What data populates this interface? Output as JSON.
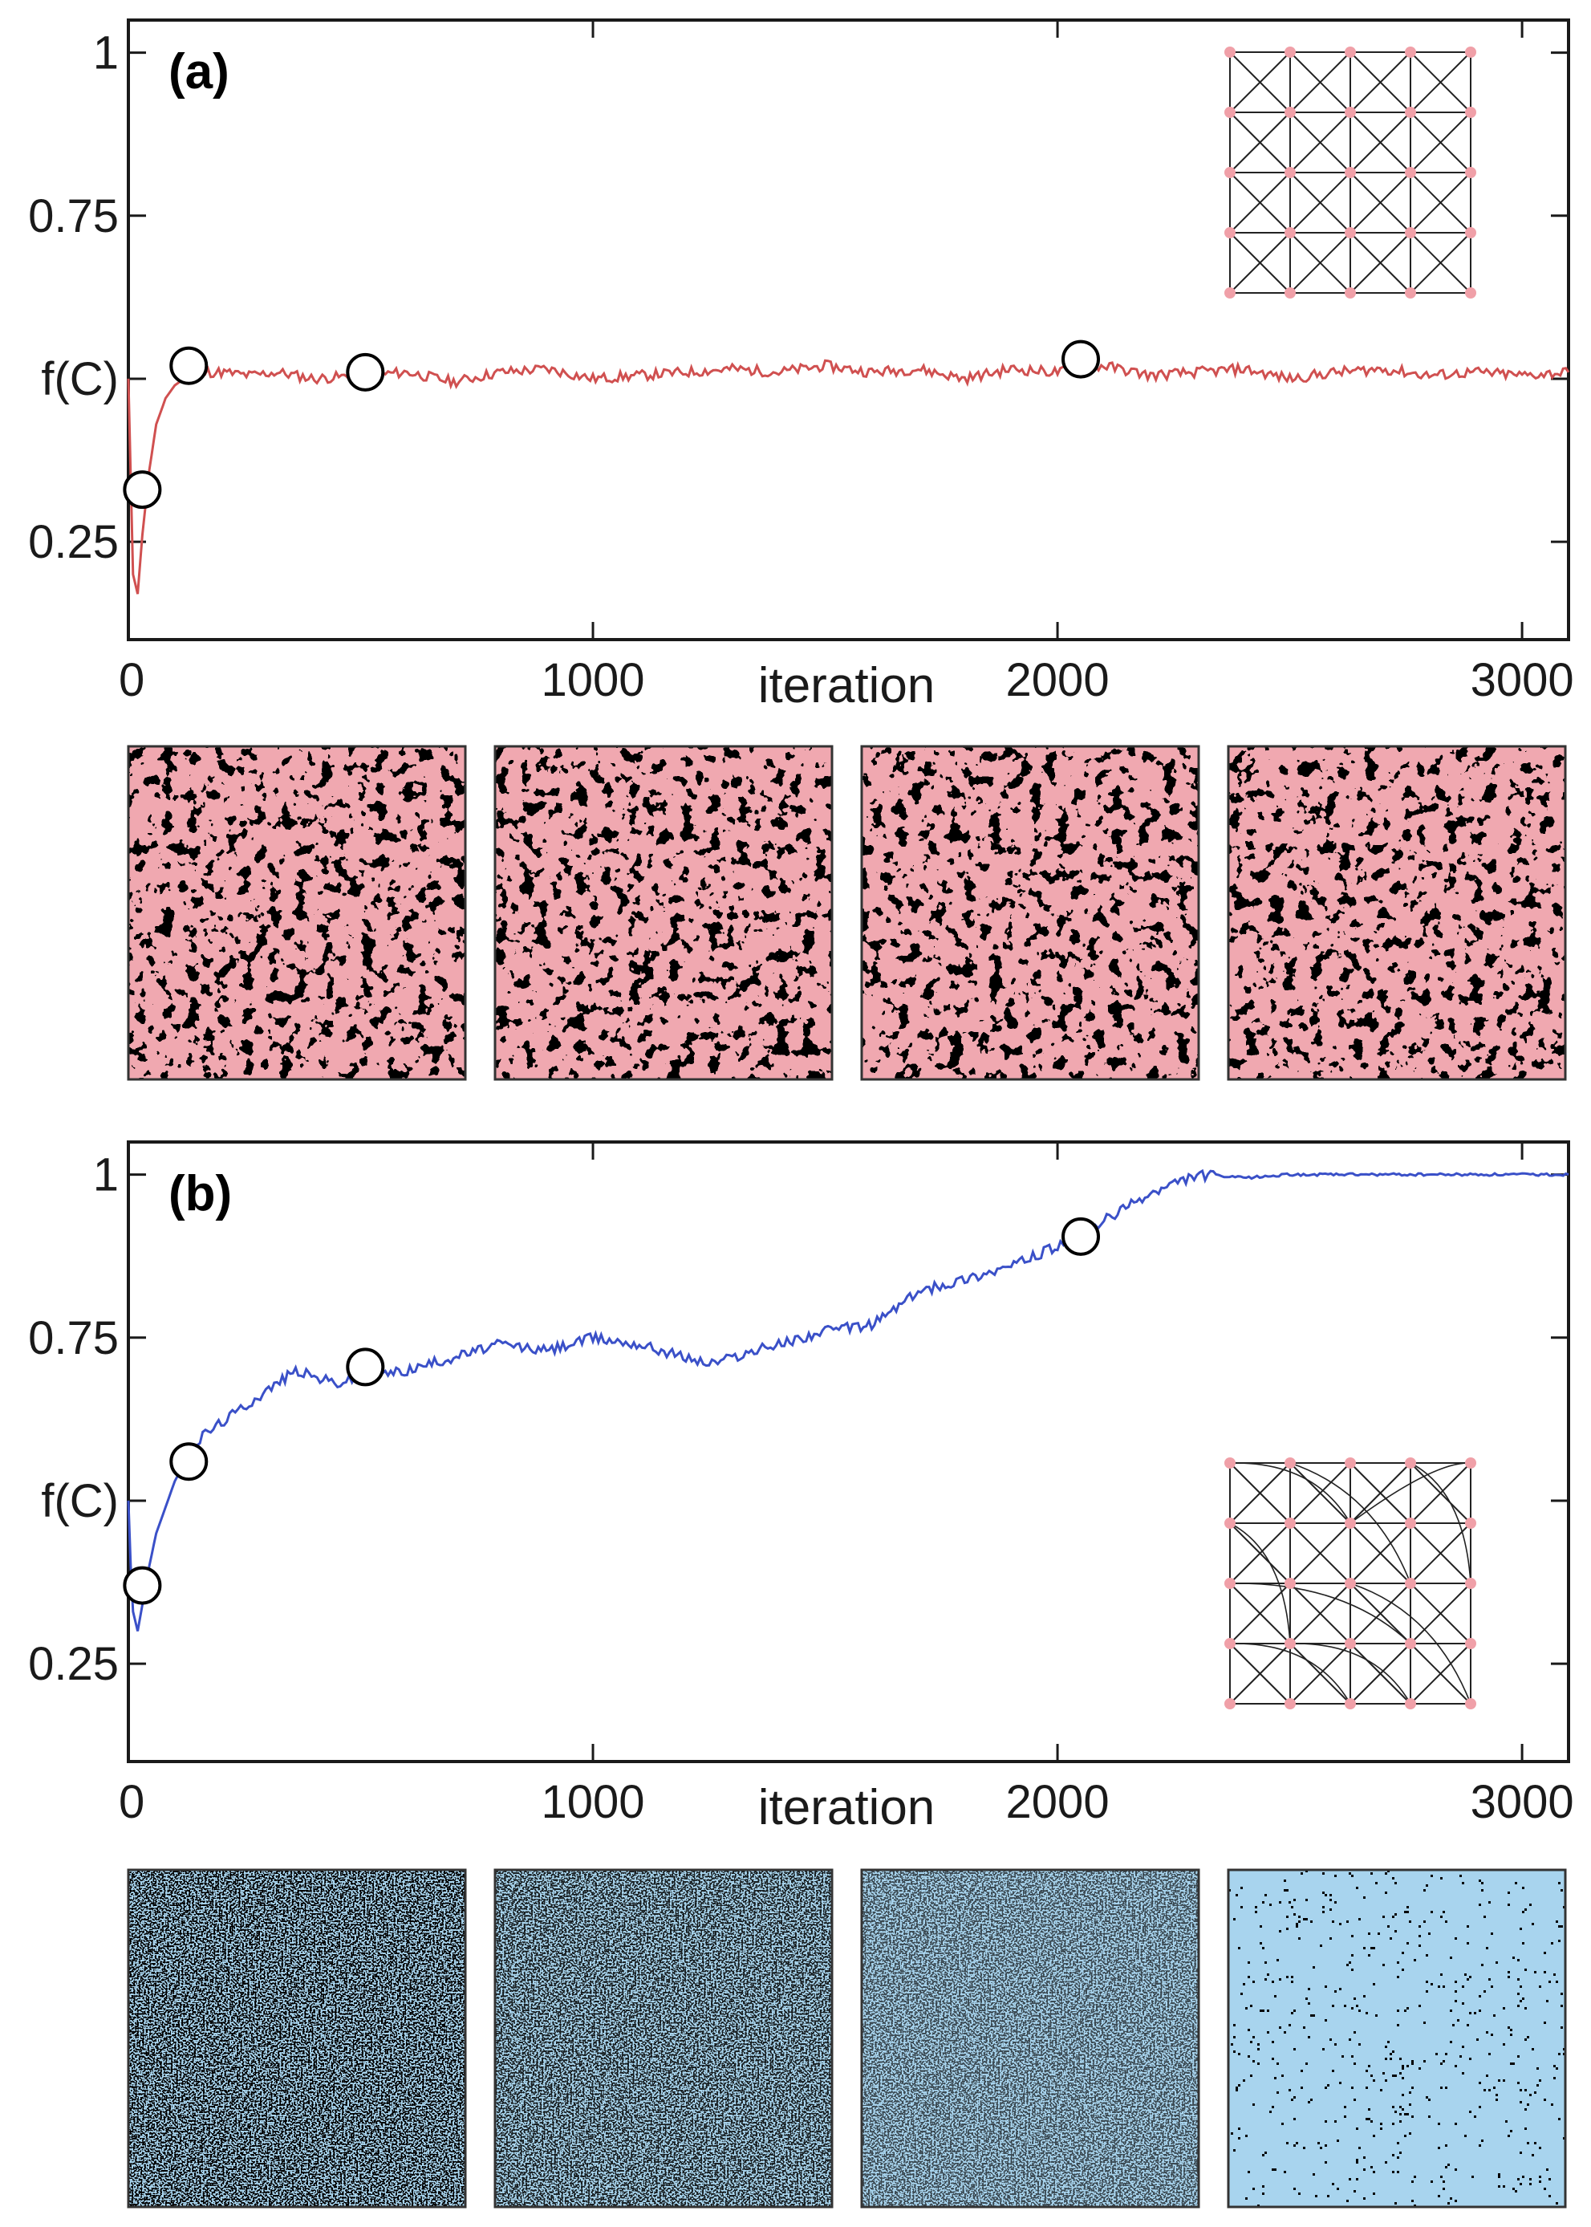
{
  "colors": {
    "panel_a_line": "#d05050",
    "panel_a_pattern": "#f0a8b0",
    "panel_b_line": "#3a50c8",
    "panel_b_pattern": "#a8d4ee",
    "lattice_node": "#f0a0a8",
    "background_pattern": "#000000"
  },
  "chart_data": [
    {
      "type": "line",
      "panel_label": "(a)",
      "xlabel": "iteration",
      "ylabel": "f(C)",
      "xlim": [
        0,
        3100
      ],
      "ylim": [
        0.1,
        1.05
      ],
      "x_ticks": [
        0,
        1000,
        2000,
        3000
      ],
      "x_tick_labels": [
        "0",
        "1000",
        "2000",
        "3000"
      ],
      "y_ticks": [
        0.25,
        0.5,
        0.75,
        1
      ],
      "y_tick_labels": [
        "0.25",
        "f(C)",
        "0.75",
        "1"
      ],
      "series": [
        {
          "name": "f(C)",
          "x": [
            0,
            5,
            10,
            20,
            30,
            45,
            60,
            80,
            100,
            130,
            160,
            200,
            260,
            320,
            400,
            500,
            600,
            700,
            800,
            900,
            1000,
            1100,
            1200,
            1300,
            1400,
            1500,
            1600,
            1700,
            1800,
            1900,
            2000,
            2100,
            2200,
            2300,
            2400,
            2500,
            2600,
            2700,
            2800,
            2900,
            3000,
            3100
          ],
          "values": [
            0.5,
            0.35,
            0.2,
            0.17,
            0.26,
            0.36,
            0.43,
            0.47,
            0.49,
            0.505,
            0.51,
            0.51,
            0.505,
            0.51,
            0.5,
            0.505,
            0.51,
            0.495,
            0.51,
            0.515,
            0.5,
            0.505,
            0.51,
            0.515,
            0.51,
            0.52,
            0.51,
            0.515,
            0.5,
            0.515,
            0.51,
            0.52,
            0.505,
            0.51,
            0.515,
            0.5,
            0.51,
            0.515,
            0.505,
            0.51,
            0.505,
            0.51
          ]
        }
      ],
      "markers": [
        {
          "x": 30,
          "y": 0.33
        },
        {
          "x": 130,
          "y": 0.52
        },
        {
          "x": 510,
          "y": 0.51
        },
        {
          "x": 2050,
          "y": 0.53
        }
      ]
    },
    {
      "type": "line",
      "panel_label": "(b)",
      "xlabel": "iteration",
      "ylabel": "f(C)",
      "xlim": [
        0,
        3100
      ],
      "ylim": [
        0.1,
        1.05
      ],
      "x_ticks": [
        0,
        1000,
        2000,
        3000
      ],
      "x_tick_labels": [
        "0",
        "1000",
        "2000",
        "3000"
      ],
      "y_ticks": [
        0.25,
        0.5,
        0.75,
        1
      ],
      "y_tick_labels": [
        "0.25",
        "f(C)",
        "0.75",
        "1"
      ],
      "series": [
        {
          "name": "f(C)",
          "x": [
            0,
            5,
            10,
            20,
            30,
            45,
            60,
            80,
            100,
            130,
            160,
            200,
            260,
            320,
            360,
            400,
            450,
            500,
            600,
            700,
            800,
            900,
            1000,
            1100,
            1200,
            1250,
            1300,
            1400,
            1500,
            1600,
            1700,
            1800,
            1900,
            2000,
            2050,
            2100,
            2200,
            2300,
            2400,
            2500,
            2600,
            2700,
            2800,
            2900,
            3000,
            3100
          ],
          "values": [
            0.5,
            0.4,
            0.33,
            0.3,
            0.34,
            0.4,
            0.45,
            0.49,
            0.53,
            0.57,
            0.6,
            0.62,
            0.65,
            0.68,
            0.7,
            0.69,
            0.68,
            0.69,
            0.7,
            0.72,
            0.74,
            0.73,
            0.75,
            0.74,
            0.72,
            0.71,
            0.72,
            0.74,
            0.76,
            0.77,
            0.82,
            0.84,
            0.86,
            0.89,
            0.9,
            0.93,
            0.97,
            1.0,
            0.995,
            1.0,
            1.0,
            1.0,
            1.0,
            1.0,
            1.0,
            1.0
          ]
        }
      ],
      "markers": [
        {
          "x": 30,
          "y": 0.37
        },
        {
          "x": 130,
          "y": 0.56
        },
        {
          "x": 510,
          "y": 0.705
        },
        {
          "x": 2050,
          "y": 0.905
        }
      ]
    }
  ]
}
